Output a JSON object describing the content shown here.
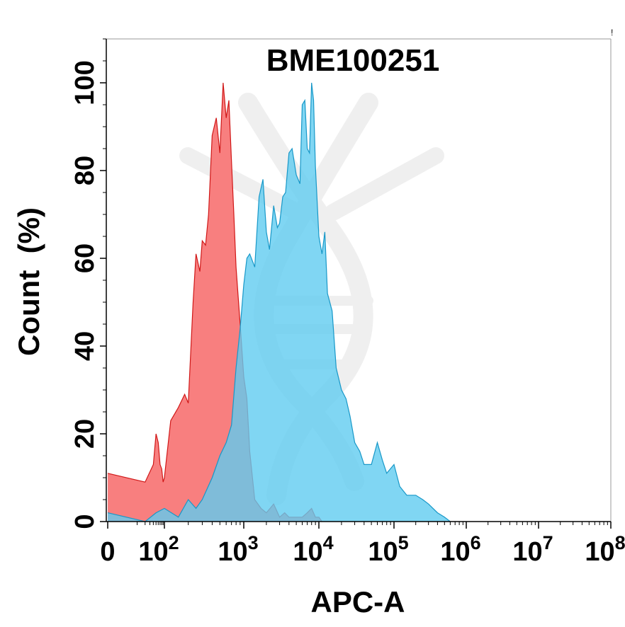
{
  "chart_data": {
    "type": "area",
    "title": "BME100251",
    "xlabel": "APC-A",
    "ylabel": "Count  (%)",
    "x_scale": "biexponential (linear near 0, log10 above)",
    "xlim": [
      0,
      100000000
    ],
    "ylim": [
      0,
      110
    ],
    "y_ticks": [
      0,
      20,
      40,
      60,
      80,
      100
    ],
    "x_ticks": [
      {
        "value": 0,
        "base": "0",
        "exp": ""
      },
      {
        "value": 100,
        "base": "10",
        "exp": "2"
      },
      {
        "value": 1000,
        "base": "10",
        "exp": "3"
      },
      {
        "value": 10000,
        "base": "10",
        "exp": "4"
      },
      {
        "value": 100000,
        "base": "10",
        "exp": "5"
      },
      {
        "value": 1000000,
        "base": "10",
        "exp": "6"
      },
      {
        "value": 10000000,
        "base": "10",
        "exp": "7"
      },
      {
        "value": 100000000,
        "base": "10",
        "exp": "8"
      }
    ],
    "grid": false,
    "legend": "none",
    "corner_mark": "!",
    "series": [
      {
        "color_fill": "#f87878",
        "color_line": "#d01818",
        "x": [
          0,
          20,
          40,
          50,
          60,
          70,
          80,
          90,
          100,
          120,
          150,
          180,
          200,
          230,
          250,
          280,
          300,
          330,
          360,
          400,
          450,
          500,
          550,
          600,
          650,
          700,
          750,
          800,
          900,
          1000,
          1100,
          1200,
          1400,
          1700,
          2000,
          2500,
          3000,
          3500,
          4000,
          5000,
          6000,
          7000,
          8000,
          9000,
          10000,
          11000
        ],
        "values": [
          11,
          9,
          13,
          20,
          18,
          13,
          12,
          9,
          10,
          23,
          26,
          29,
          27,
          50,
          61,
          57,
          64,
          63,
          70,
          88,
          92,
          84,
          100,
          92,
          96,
          82,
          70,
          58,
          45,
          33,
          28,
          16,
          5,
          3,
          2,
          4,
          1,
          2,
          1,
          1,
          1,
          2,
          3,
          1,
          1,
          0
        ]
      },
      {
        "color_fill": "#60ccf0",
        "color_line": "#1898c8",
        "x": [
          0,
          20,
          50,
          100,
          150,
          200,
          250,
          300,
          400,
          500,
          600,
          700,
          800,
          900,
          1000,
          1100,
          1200,
          1400,
          1600,
          1800,
          2000,
          2200,
          2500,
          2800,
          3000,
          3300,
          3600,
          4000,
          4400,
          5000,
          5600,
          6000,
          6500,
          7000,
          7500,
          8000,
          8500,
          9000,
          10000,
          11000,
          12000,
          13000,
          15000,
          17000,
          20000,
          23000,
          26000,
          30000,
          35000,
          40000,
          50000,
          60000,
          70000,
          80000,
          100000,
          120000,
          150000,
          200000,
          250000,
          300000,
          400000,
          500000,
          600000
        ],
        "values": [
          2,
          0,
          2,
          3,
          1,
          5,
          3,
          5,
          10,
          15,
          18,
          22,
          35,
          44,
          54,
          60,
          61,
          58,
          74,
          78,
          66,
          62,
          72,
          67,
          68,
          74,
          75,
          84,
          85,
          79,
          77,
          95,
          96,
          85,
          84,
          100,
          96,
          81,
          65,
          61,
          66,
          52,
          48,
          35,
          30,
          28,
          24,
          18,
          16,
          13,
          13,
          18,
          14,
          11,
          13,
          8,
          6,
          6,
          5,
          4,
          2,
          1,
          0
        ]
      }
    ]
  }
}
